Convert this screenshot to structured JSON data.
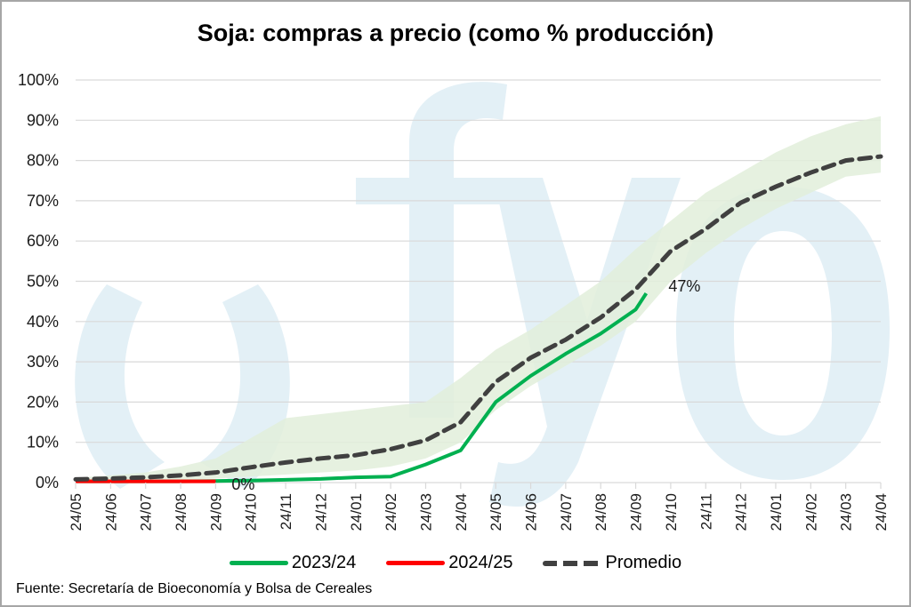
{
  "chart_data": {
    "type": "line",
    "title": "Soja: compras a precio (como % producción)",
    "xlabel": "",
    "ylabel": "",
    "ylim": [
      0,
      100
    ],
    "yticks": [
      "0%",
      "10%",
      "20%",
      "30%",
      "40%",
      "50%",
      "60%",
      "70%",
      "80%",
      "90%",
      "100%"
    ],
    "categories": [
      "24/05",
      "24/06",
      "24/07",
      "24/08",
      "24/09",
      "24/10",
      "24/11",
      "24/12",
      "24/01",
      "24/02",
      "24/03",
      "24/04",
      "24/05",
      "24/06",
      "24/07",
      "24/08",
      "24/09",
      "24/10",
      "24/11",
      "24/12",
      "24/01",
      "24/02",
      "24/03",
      "24/04"
    ],
    "series": [
      {
        "name": "2023/24",
        "color": "#00b050",
        "values": [
          0.3,
          0.3,
          0.3,
          0.3,
          0.4,
          0.5,
          0.7,
          0.9,
          1.3,
          1.5,
          4.5,
          8,
          20,
          26.5,
          32,
          37,
          43,
          null,
          null,
          null,
          null,
          null,
          null,
          null
        ],
        "end_point": {
          "x_index": 16.3,
          "value": 47
        },
        "end_label": "47%"
      },
      {
        "name": "2024/25",
        "color": "#ff0000",
        "values": [
          0.3,
          0.3,
          0.3,
          0.3,
          0.3,
          null,
          null,
          null,
          null,
          null,
          null,
          null,
          null,
          null,
          null,
          null,
          null,
          null,
          null,
          null,
          null,
          null,
          null,
          null
        ],
        "end_label": "0%"
      },
      {
        "name": "Promedio",
        "color": "#404040",
        "style": "dashed",
        "values": [
          0.8,
          1.0,
          1.3,
          1.8,
          2.5,
          3.8,
          5.0,
          6.0,
          6.8,
          8.3,
          10.5,
          15,
          25,
          31,
          35.5,
          41,
          48,
          57.5,
          63,
          69.5,
          73.5,
          77,
          80,
          81
        ]
      },
      {
        "name": "Rango",
        "color": "#e2efda",
        "type": "band",
        "lower": [
          0.3,
          0.3,
          0.5,
          0.7,
          1,
          1.5,
          2,
          2.5,
          3,
          4,
          6,
          10,
          18,
          24,
          29,
          34,
          40,
          50,
          57,
          63,
          68,
          72,
          76,
          77
        ],
        "upper": [
          1.2,
          1.8,
          2.5,
          4,
          6,
          11,
          16,
          17,
          18,
          19,
          20,
          26,
          33,
          38,
          44,
          50,
          58,
          65,
          72,
          77,
          82,
          86,
          89,
          91
        ]
      }
    ],
    "legend": [
      "2023/24",
      "2024/25",
      "Promedio"
    ],
    "legend_position": "bottom",
    "grid": true,
    "annotations": [
      "47%",
      "0%"
    ],
    "watermark": "fyo"
  },
  "legend": {
    "item1": "2023/24",
    "item2": "2024/25",
    "item3": "Promedio"
  },
  "source": "Fuente: Secretaría de Bioeconomía y Bolsa de Cereales",
  "labels": {
    "end_2324": "47%",
    "end_2425": "0%"
  }
}
